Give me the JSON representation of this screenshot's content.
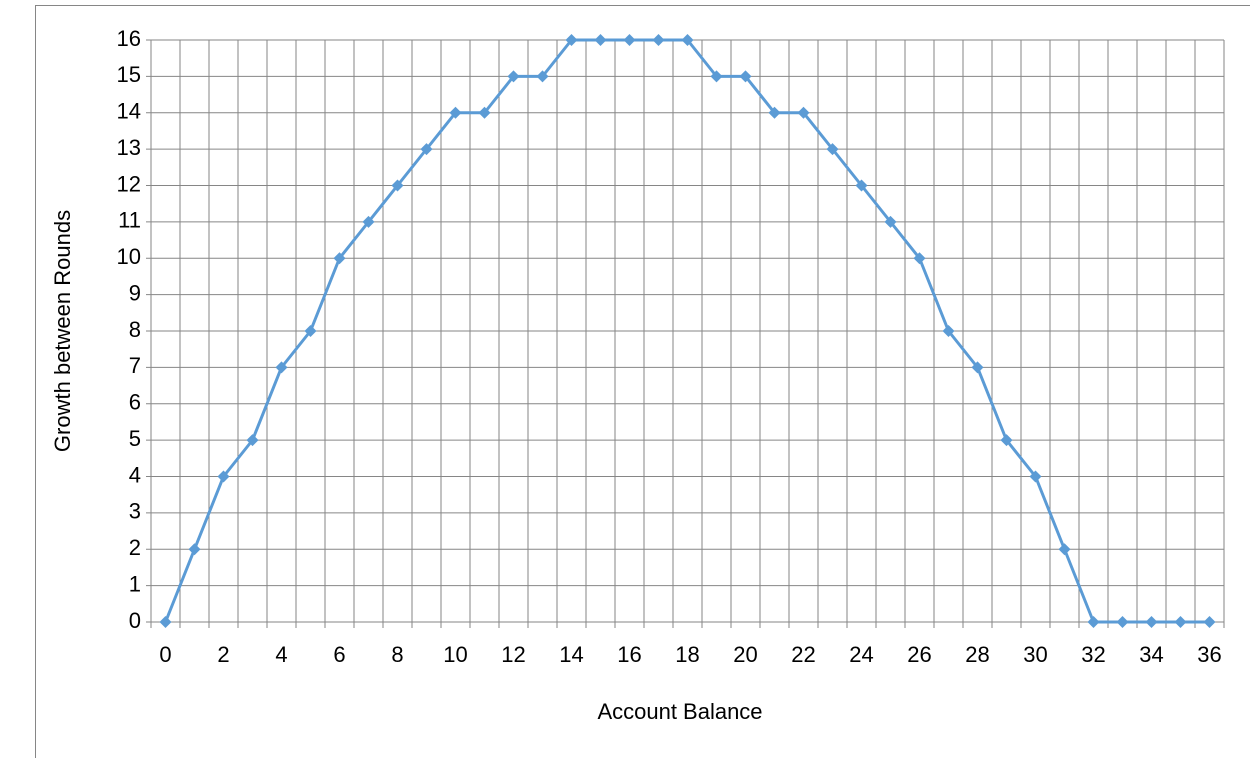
{
  "chart_data": {
    "type": "line",
    "x_label": "Account Balance",
    "y_label": "Growth between Rounds",
    "categories": [
      "0",
      null,
      "2",
      null,
      "4",
      null,
      "6",
      null,
      "8",
      null,
      "10",
      null,
      "12",
      null,
      "14",
      null,
      "16",
      null,
      "18",
      null,
      "20",
      null,
      "22",
      null,
      "24",
      null,
      "26",
      null,
      "28",
      null,
      "30",
      null,
      "32",
      null,
      "34",
      null,
      "36"
    ],
    "series": [
      {
        "name": "Growth",
        "color": "#5b9bd5",
        "values": [
          0,
          2,
          4,
          5,
          7,
          8,
          10,
          11,
          12,
          13,
          14,
          14,
          15,
          15,
          16,
          16,
          16,
          16,
          16,
          15,
          15,
          14,
          14,
          13,
          12,
          11,
          10,
          8,
          7,
          5,
          4,
          2,
          0,
          0,
          0,
          0,
          0
        ]
      }
    ],
    "ylim": [
      0,
      16
    ],
    "yticks": [
      0,
      1,
      2,
      3,
      4,
      5,
      6,
      7,
      8,
      9,
      10,
      11,
      12,
      13,
      14,
      15,
      16
    ],
    "grid": true
  }
}
